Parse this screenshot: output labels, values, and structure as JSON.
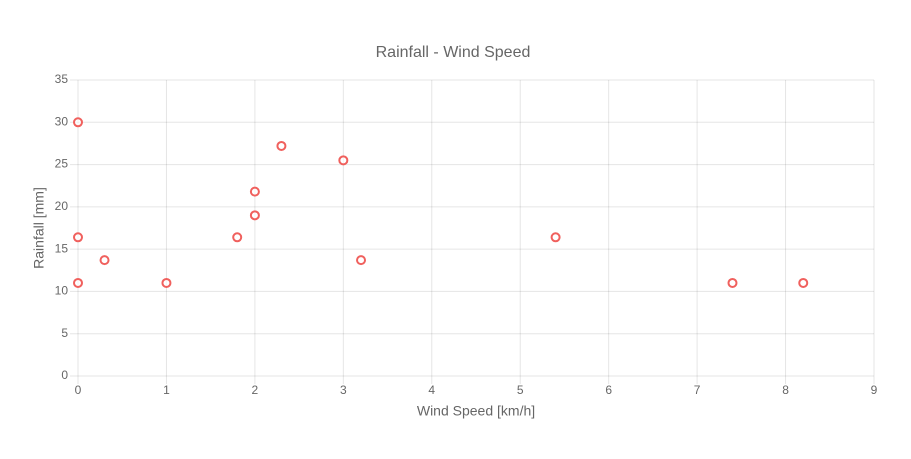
{
  "chart_data": {
    "type": "scatter",
    "title": "Rainfall - Wind Speed",
    "xlabel": "Wind Speed [km/h]",
    "ylabel": "Rainfall [mm]",
    "series": [
      {
        "color": "#f0605d",
        "x": [
          0,
          0,
          0,
          0.3,
          1,
          1.8,
          2,
          2,
          2.3,
          3,
          3.2,
          5.4,
          7.4,
          8.2
        ],
        "values": [
          30,
          16.4,
          11,
          13.7,
          11,
          16.4,
          21.8,
          19,
          27.2,
          25.5,
          13.7,
          16.4,
          11,
          11
        ]
      }
    ],
    "xlim": [
      0,
      9
    ],
    "xticks": [
      0,
      1,
      2,
      3,
      4,
      5,
      6,
      7,
      8,
      9
    ],
    "ylim": [
      0,
      35
    ],
    "yticks": [
      0,
      5,
      10,
      15,
      20,
      25,
      30,
      35
    ],
    "grid": true
  }
}
